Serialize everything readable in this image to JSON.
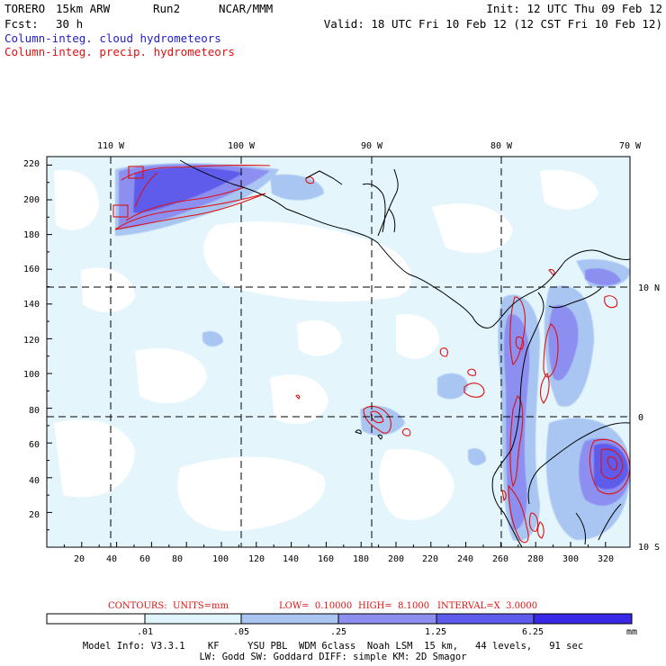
{
  "header": {
    "model": "TORERO",
    "resolution": "15km ARW",
    "run": "Run2",
    "org": "NCAR/MMM",
    "init": "Init: 12 UTC Thu 09 Feb 12",
    "fcst_label": "Fcst:",
    "fcst_value": "30 h",
    "valid": "Valid: 18 UTC Fri 10 Feb 12 (12 CST Fri 10 Feb 12)"
  },
  "legend": {
    "cloud": "Column-integ. cloud hydrometeors",
    "precip": "Column-integ. precip. hydrometeors"
  },
  "map": {
    "top_lon_labels": [
      "110 W",
      "100 W",
      "90 W",
      "80 W",
      "70 W"
    ],
    "right_lat_labels": [
      "10 N",
      "0",
      "10 S"
    ],
    "y_ticks": [
      "220",
      "200",
      "180",
      "160",
      "140",
      "120",
      "100",
      "80",
      "60",
      "40",
      "20"
    ],
    "x_ticks": [
      "20",
      "40",
      "60",
      "80",
      "100",
      "120",
      "140",
      "160",
      "180",
      "200",
      "220",
      "240",
      "260",
      "280",
      "300",
      "320"
    ]
  },
  "contours": {
    "units": "CONTOURS:  UNITS=mm",
    "low": "LOW=  0.10000",
    "high": "HIGH=  8.1000",
    "interval": "INTERVAL=X  3.0000"
  },
  "colorbar": {
    "labels": [
      ".01",
      ".05",
      ".25",
      "1.25",
      "6.25"
    ],
    "unit": "mm",
    "colors": [
      "#ffffff",
      "#dff4fb",
      "#a9c6f2",
      "#8c8ff0",
      "#5e5cec",
      "#3a28e8"
    ]
  },
  "footer": {
    "line1": "Model Info: V3.3.1    KF     YSU PBL  WDM 6class  Noah LSM  15 km,   44 levels,   91 sec",
    "line2": "LW: Godd SW: Goddard DIFF: simple KM: 2D Smagor"
  }
}
